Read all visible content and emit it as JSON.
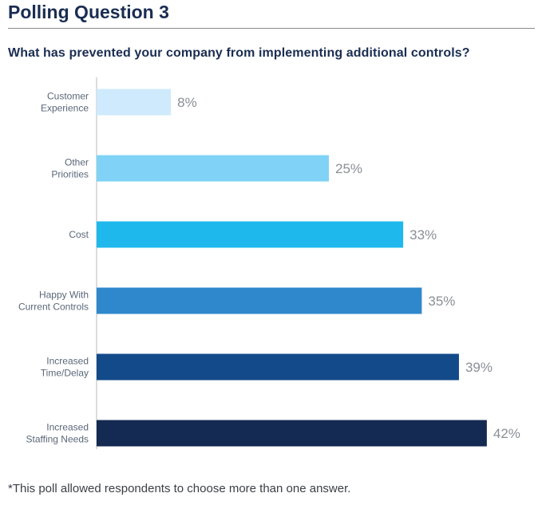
{
  "title": "Polling Question 3",
  "footnote": "*This poll allowed respondents to choose more than one answer.",
  "chart_data": {
    "type": "bar",
    "orientation": "horizontal",
    "title": "What has prevented your company from implementing additional controls?",
    "categories": [
      [
        "Customer",
        "Experience"
      ],
      [
        "Other",
        "Priorities"
      ],
      [
        "Cost"
      ],
      [
        "Happy With",
        "Current Controls"
      ],
      [
        "Increased",
        "Time/Delay"
      ],
      [
        "Increased",
        "Staffing Needs"
      ]
    ],
    "values": [
      8,
      25,
      33,
      35,
      39,
      42
    ],
    "value_labels": [
      "8%",
      "25%",
      "33%",
      "35%",
      "39%",
      "42%"
    ],
    "unit": "%",
    "bar_colors": [
      "#cfeafc",
      "#80d3f6",
      "#1fb8ec",
      "#2f88cc",
      "#134a8a",
      "#152a52"
    ],
    "grid": false,
    "legend": "none"
  }
}
